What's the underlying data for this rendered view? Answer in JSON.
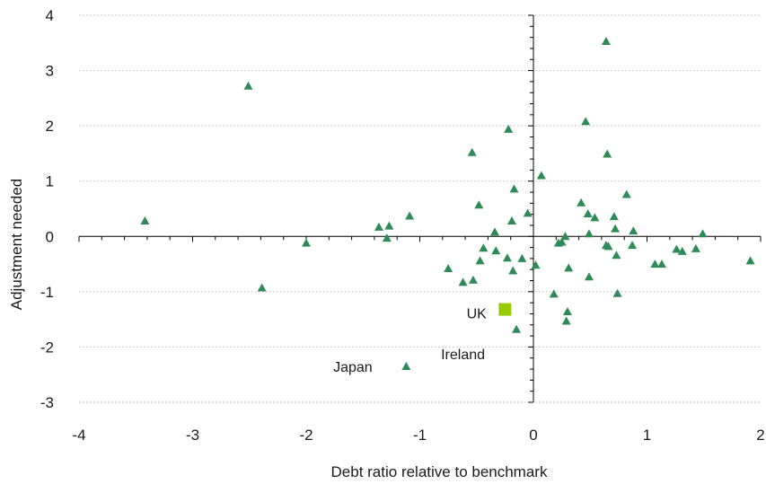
{
  "chart_data": {
    "type": "scatter",
    "xlabel": "Debt ratio relative to benchmark",
    "ylabel": "Adjustment needed",
    "xlim": [
      -4,
      2
    ],
    "ylim": [
      -3,
      4
    ],
    "x_ticks": [
      "-4",
      "-3",
      "-2",
      "-1",
      "0",
      "1",
      "2"
    ],
    "y_ticks": [
      "4",
      "3",
      "2",
      "1",
      "0",
      "-1",
      "-2",
      "-3"
    ],
    "grid": "horizontal dotted",
    "colors": {
      "points": "#2e8b57",
      "highlight": "#99cc00",
      "axis": "#000000",
      "grid": "#bbbbbb"
    },
    "series": [
      {
        "marker": "triangle",
        "points": [
          [
            -3.42,
            0.28
          ],
          [
            -2.51,
            2.72
          ],
          [
            -2.39,
            -0.93
          ],
          [
            -2.0,
            -0.12
          ],
          [
            -1.36,
            0.17
          ],
          [
            -1.29,
            -0.03
          ],
          [
            -1.27,
            0.19
          ],
          [
            -1.09,
            0.37
          ],
          [
            -1.12,
            -2.35
          ],
          [
            -0.75,
            -0.58
          ],
          [
            -0.62,
            -0.83
          ],
          [
            -0.54,
            1.52
          ],
          [
            -0.53,
            -0.79
          ],
          [
            -0.48,
            0.57
          ],
          [
            -0.47,
            -0.44
          ],
          [
            -0.44,
            -0.21
          ],
          [
            -0.34,
            0.08
          ],
          [
            -0.33,
            -0.26
          ],
          [
            -0.23,
            -0.39
          ],
          [
            -0.22,
            1.94
          ],
          [
            -0.19,
            0.28
          ],
          [
            -0.18,
            -0.62
          ],
          [
            -0.17,
            0.86
          ],
          [
            -0.15,
            -1.68
          ],
          [
            -0.1,
            -0.4
          ],
          [
            -0.05,
            0.42
          ],
          [
            0.02,
            -0.52
          ],
          [
            0.07,
            1.1
          ],
          [
            0.18,
            -1.04
          ],
          [
            0.22,
            -0.12
          ],
          [
            0.25,
            -0.1
          ],
          [
            0.28,
            0.0
          ],
          [
            0.29,
            -1.53
          ],
          [
            0.3,
            -1.36
          ],
          [
            0.31,
            -0.57
          ],
          [
            0.42,
            0.61
          ],
          [
            0.46,
            2.08
          ],
          [
            0.48,
            0.41
          ],
          [
            0.49,
            0.05
          ],
          [
            0.49,
            -0.73
          ],
          [
            0.54,
            0.34
          ],
          [
            0.64,
            3.53
          ],
          [
            0.64,
            -0.16
          ],
          [
            0.65,
            1.49
          ],
          [
            0.66,
            -0.18
          ],
          [
            0.71,
            0.36
          ],
          [
            0.72,
            0.14
          ],
          [
            0.73,
            -0.34
          ],
          [
            0.74,
            -1.03
          ],
          [
            0.82,
            0.76
          ],
          [
            0.87,
            -0.16
          ],
          [
            0.88,
            0.1
          ],
          [
            1.07,
            -0.5
          ],
          [
            1.13,
            -0.5
          ],
          [
            1.26,
            -0.23
          ],
          [
            1.31,
            -0.27
          ],
          [
            1.43,
            -0.22
          ],
          [
            1.49,
            0.05
          ],
          [
            1.91,
            -0.44
          ]
        ]
      },
      {
        "name": "UK",
        "marker": "square",
        "points": [
          [
            -0.25,
            -1.32
          ]
        ]
      }
    ],
    "annotations": [
      {
        "text": "UK",
        "x": -0.5,
        "y": -1.48
      },
      {
        "text": "Ireland",
        "x": -0.62,
        "y": -2.22
      },
      {
        "text": "Japan",
        "x": -1.59,
        "y": -2.45
      }
    ]
  }
}
